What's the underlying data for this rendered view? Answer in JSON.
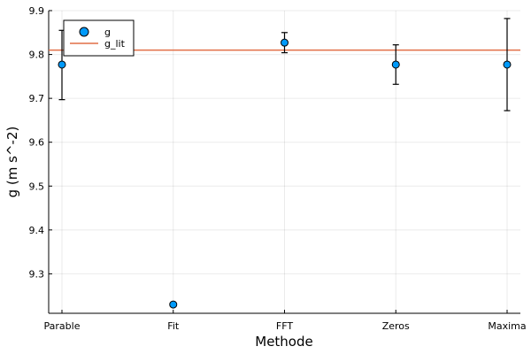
{
  "chart_data": {
    "type": "scatter",
    "categories": [
      "Parable",
      "Fit",
      "FFT",
      "Zeros",
      "Maxima"
    ],
    "series": [
      {
        "name": "g",
        "values": [
          9.777,
          9.23,
          9.827,
          9.777,
          9.777
        ],
        "error_low": [
          0.08,
          null,
          0.023,
          0.045,
          0.105
        ],
        "error_high": [
          0.078,
          null,
          0.023,
          0.045,
          0.105
        ],
        "color": "#009AFA"
      },
      {
        "name": "g_lit",
        "type": "hline",
        "value": 9.81,
        "color": "#E26F46"
      }
    ],
    "xlabel": "Methode",
    "ylabel": "g (m s^-2)",
    "ylim": [
      9.21,
      9.9
    ],
    "yticks": [
      9.3,
      9.4,
      9.5,
      9.6,
      9.7,
      9.8,
      9.9
    ],
    "ytick_labels": [
      "9.3",
      "9.4",
      "9.5",
      "9.6",
      "9.7",
      "9.8",
      "9.9"
    ],
    "grid": true,
    "legend_position": "top-left"
  }
}
